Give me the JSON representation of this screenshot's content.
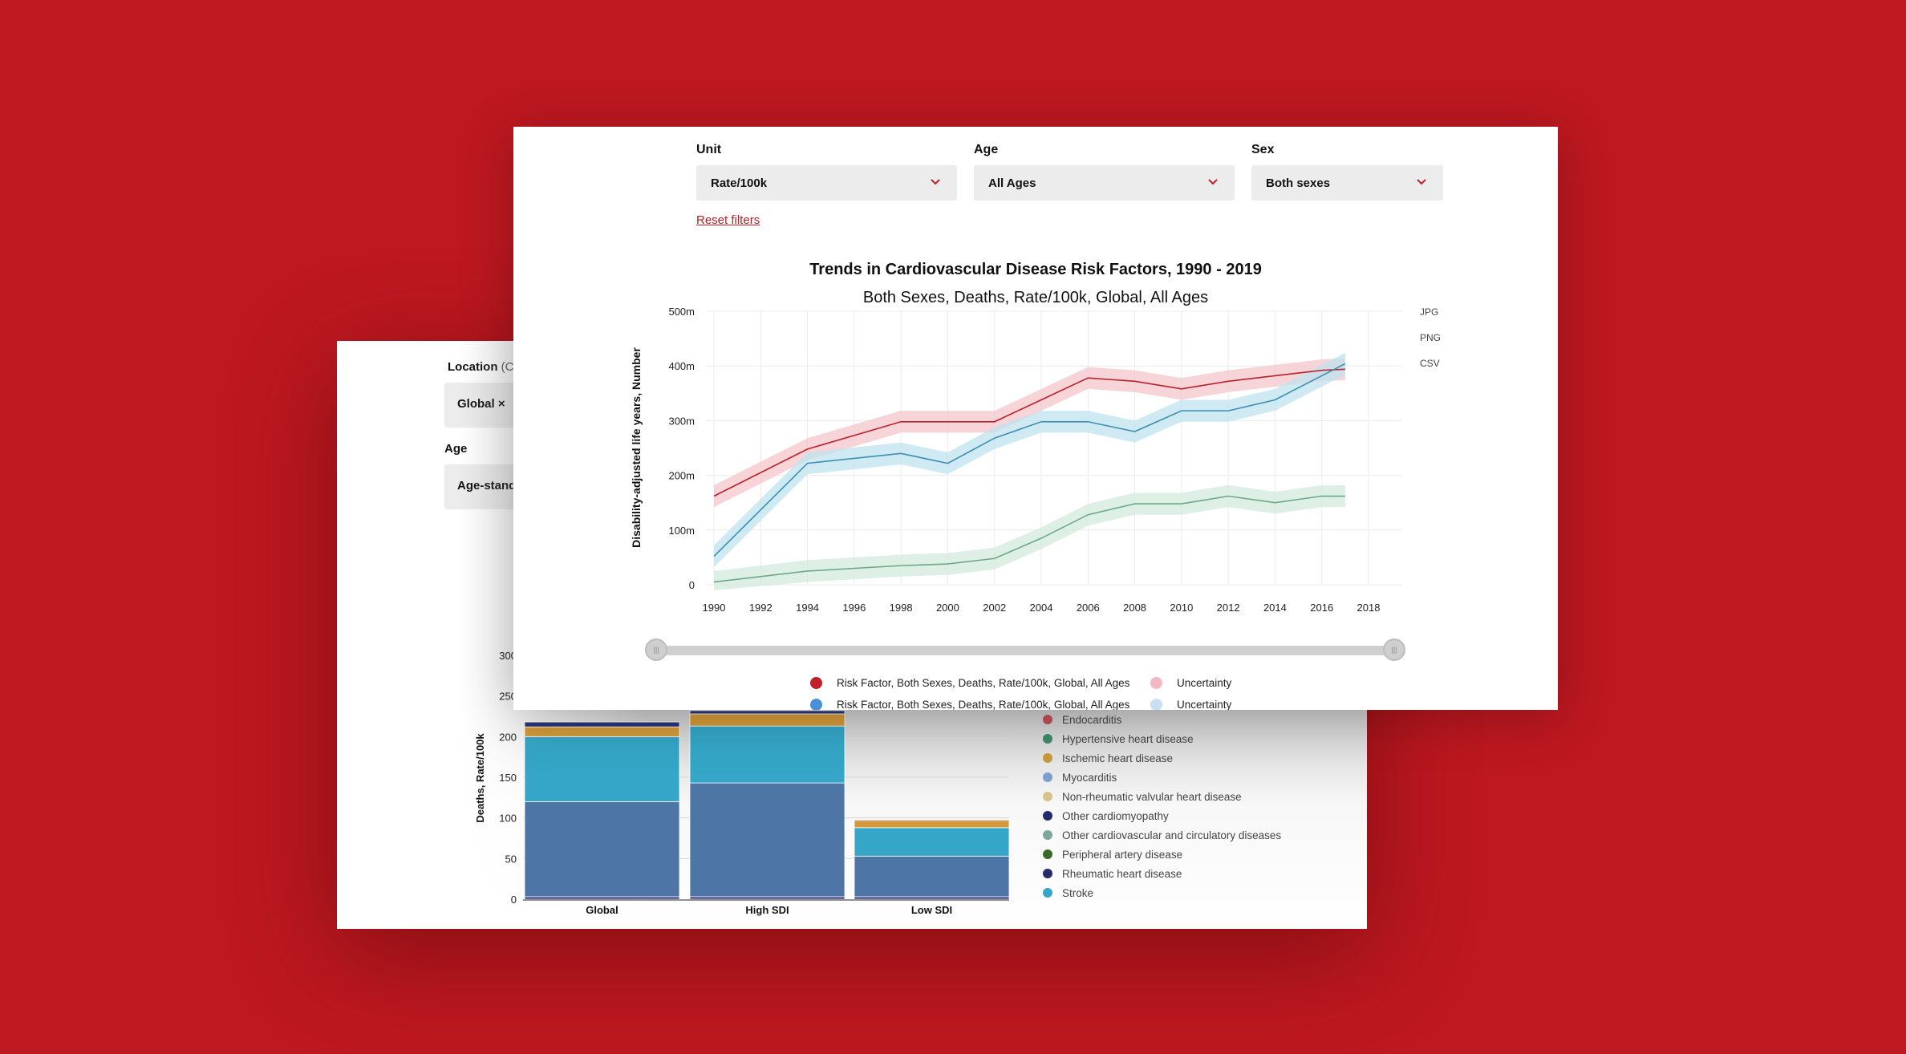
{
  "back_panel": {
    "location_label": "Location",
    "location_label_suffix": "(Ch",
    "location_value": "Global ×",
    "age_label": "Age",
    "age_value": "Age-standa",
    "chart_data": {
      "type": "bar",
      "stacked": true,
      "ylabel": "Deaths, Rate/100k",
      "ylim": [
        0,
        300
      ],
      "y_ticks": [
        "0",
        "50",
        "100",
        "150",
        "200",
        "250",
        "300"
      ],
      "categories": [
        "Global",
        "High SDI",
        "Low SDI"
      ],
      "series": [
        {
          "name": "Rheumatic heart disease",
          "color": "#2a3577",
          "values": [
            3,
            3,
            3
          ]
        },
        {
          "name": "Hypertensive heart disease",
          "color": "#4d76a6",
          "values": [
            117,
            140,
            50
          ]
        },
        {
          "name": "Stroke",
          "color": "#35a6c7",
          "values": [
            80,
            70,
            35
          ]
        },
        {
          "name": "Ischemic heart disease",
          "color": "#d49a3a",
          "values": [
            12,
            15,
            9
          ]
        },
        {
          "name": "Other cardiomyopathy",
          "color": "#2a3577",
          "values": [
            6,
            4,
            1
          ]
        }
      ],
      "legend": [
        {
          "name": "Endocarditis",
          "color": "#c2505a"
        },
        {
          "name": "Hypertensive heart disease",
          "color": "#3e8c6a"
        },
        {
          "name": "Ischemic heart disease",
          "color": "#c89a3a"
        },
        {
          "name": "Myocarditis",
          "color": "#7aa0cf"
        },
        {
          "name": "Non-rheumatic valvular heart disease",
          "color": "#d8c48a"
        },
        {
          "name": "Other cardiomyopathy",
          "color": "#252a6a"
        },
        {
          "name": "Other cardiovascular and circulatory diseases",
          "color": "#7ea89d"
        },
        {
          "name": "Peripheral artery disease",
          "color": "#3a6a2a"
        },
        {
          "name": "Rheumatic heart disease",
          "color": "#252a6a"
        },
        {
          "name": "Stroke",
          "color": "#35a6c7"
        }
      ]
    }
  },
  "front_panel": {
    "filters": [
      {
        "label": "Unit",
        "value": "Rate/100k"
      },
      {
        "label": "Age",
        "value": "All Ages"
      },
      {
        "label": "Sex",
        "value": "Both sexes"
      }
    ],
    "reset_label": "Reset filters",
    "export_options": [
      "JPG",
      "PNG",
      "CSV"
    ],
    "chart_data": {
      "type": "line",
      "title": "Trends in Cardiovascular Disease Risk Factors, 1990 - 2019",
      "subtitle": "Both Sexes, Deaths, Rate/100k, Global, All Ages",
      "ylabel": "Disability-adjusted life years, Number",
      "xlabel": "",
      "xlim": [
        1990,
        2018
      ],
      "ylim": [
        0,
        500
      ],
      "x_ticks": [
        "1990",
        "1992",
        "1994",
        "1996",
        "1998",
        "2000",
        "2002",
        "2004",
        "2006",
        "2008",
        "2010",
        "2012",
        "2014",
        "2016",
        "2018"
      ],
      "y_ticks": [
        "0",
        "100m",
        "200m",
        "300m",
        "400m",
        "500m"
      ],
      "x": [
        1990,
        1994,
        1998,
        2000,
        2002,
        2004,
        2006,
        2008,
        2010,
        2012,
        2014,
        2016,
        2017
      ],
      "series": [
        {
          "color": "#b8222c",
          "band_color": "#f3c6cb",
          "values": [
            162,
            248,
            298,
            298,
            298,
            338,
            378,
            372,
            358,
            372,
            382,
            392,
            394
          ]
        },
        {
          "color": "#3b8fb1",
          "band_color": "#bfe3ee",
          "values": [
            52,
            222,
            240,
            222,
            268,
            298,
            298,
            280,
            318,
            318,
            338,
            382,
            404
          ]
        },
        {
          "color": "#6aaa86",
          "band_color": "#d3e9dc",
          "values": [
            5,
            25,
            35,
            38,
            48,
            85,
            128,
            148,
            148,
            162,
            150,
            162,
            162
          ]
        }
      ],
      "band_half_width": 20,
      "legend": [
        {
          "label": "Risk Factor, Both Sexes, Deaths, Rate/100k, Global, All Ages",
          "color": "#c0202a"
        },
        {
          "label": "Uncertainty",
          "color": "#f3b9c0"
        },
        {
          "label": "Risk Factor, Both Sexes, Deaths, Rate/100k, Global, All Ages",
          "color": "#4a90d9"
        },
        {
          "label": "Uncertainty",
          "color": "#c8def3"
        }
      ]
    }
  }
}
